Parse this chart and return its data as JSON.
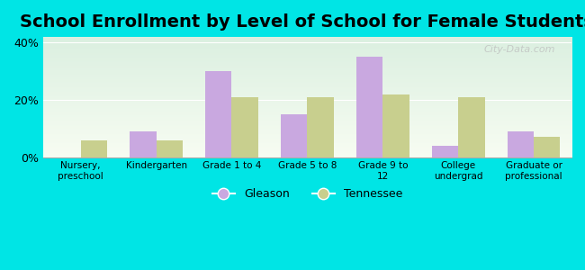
{
  "title": "School Enrollment by Level of School for Female Students",
  "categories": [
    "Nursery,\npreschool",
    "Kindergarten",
    "Grade 1 to 4",
    "Grade 5 to 8",
    "Grade 9 to\n12",
    "College\nundergrad",
    "Graduate or\nprofessional"
  ],
  "gleason": [
    0,
    9,
    30,
    15,
    35,
    4,
    9
  ],
  "tennessee": [
    6,
    6,
    21,
    21,
    22,
    21,
    7
  ],
  "gleason_color": "#c9a8e0",
  "tennessee_color": "#c8cf8e",
  "bg_color": "#00e5e5",
  "ylim": [
    0,
    42
  ],
  "yticks": [
    0,
    20,
    40
  ],
  "ytick_labels": [
    "0%",
    "20%",
    "40%"
  ],
  "title_fontsize": 14,
  "legend_labels": [
    "Gleason",
    "Tennessee"
  ],
  "watermark": "City-Data.com"
}
